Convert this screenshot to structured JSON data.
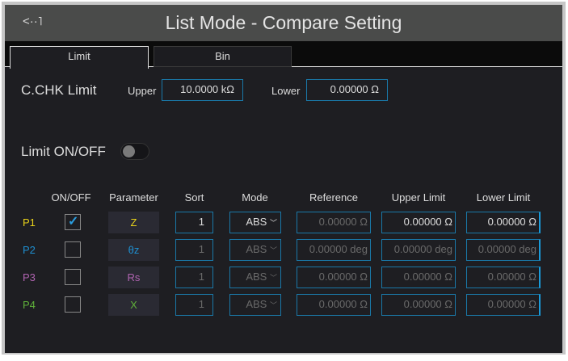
{
  "header": {
    "title": "List Mode - Compare Setting",
    "back_icon": "back-return-icon"
  },
  "tabs": [
    {
      "label": "Limit",
      "active": true
    },
    {
      "label": "Bin",
      "active": false
    }
  ],
  "cchk": {
    "label": "C.CHK Limit",
    "upper_label": "Upper",
    "upper_value": "10.0000 kΩ",
    "lower_label": "Lower",
    "lower_value": "0.00000 Ω"
  },
  "limit_toggle": {
    "label": "Limit ON/OFF",
    "on": false
  },
  "table": {
    "headers": [
      "ON/OFF",
      "Parameter",
      "Sort",
      "Mode",
      "Reference",
      "Upper Limit",
      "Lower Limit"
    ],
    "rows": [
      {
        "id": "P1",
        "color": "#e8d21a",
        "checked": true,
        "parameter": "Z",
        "sort": "1",
        "mode": "ABS",
        "reference": "0.00000 Ω",
        "upper": "0.00000 Ω",
        "lower": "0.00000 Ω"
      },
      {
        "id": "P2",
        "color": "#1e8fd0",
        "checked": false,
        "parameter": "θz",
        "sort": "1",
        "mode": "ABS",
        "reference": "0.00000 deg",
        "upper": "0.00000 deg",
        "lower": "0.00000 deg"
      },
      {
        "id": "P3",
        "color": "#b064b0",
        "checked": false,
        "parameter": "Rs",
        "sort": "1",
        "mode": "ABS",
        "reference": "0.00000 Ω",
        "upper": "0.00000 Ω",
        "lower": "0.00000 Ω"
      },
      {
        "id": "P4",
        "color": "#5fb03a",
        "checked": false,
        "parameter": "X",
        "sort": "1",
        "mode": "ABS",
        "reference": "0.00000 Ω",
        "upper": "0.00000 Ω",
        "lower": "0.00000 Ω"
      }
    ]
  }
}
